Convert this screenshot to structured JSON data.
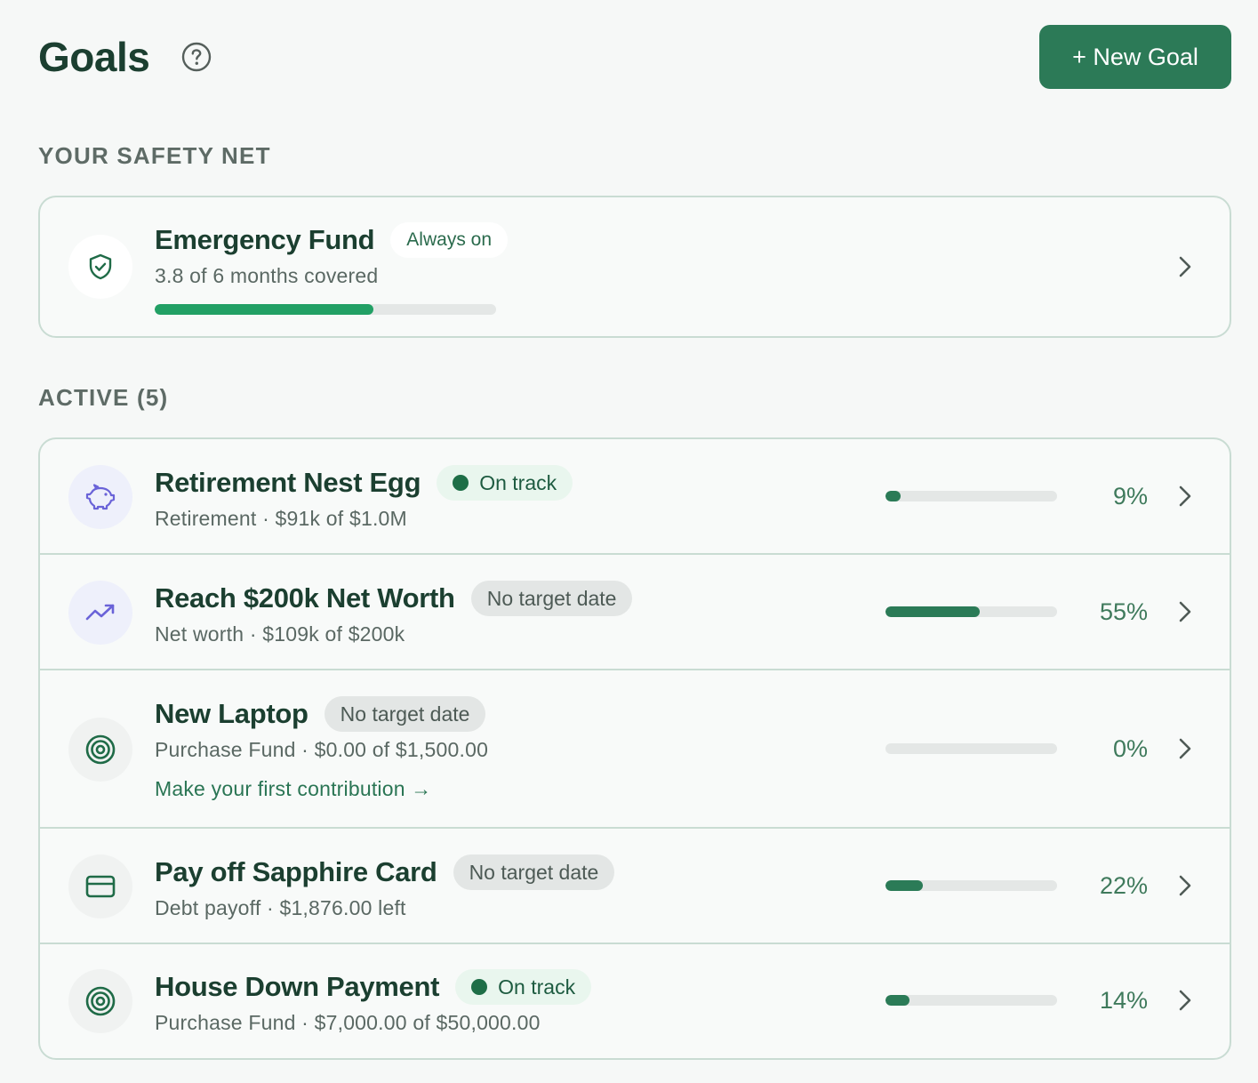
{
  "header": {
    "title": "Goals",
    "help_icon": "help-circle-icon",
    "new_goal_label": "+ New Goal"
  },
  "safety_net": {
    "section_label": "YOUR SAFETY NET",
    "title": "Emergency Fund",
    "badge": "Always on",
    "subtitle": "3.8 of 6 months covered",
    "progress": 0.64,
    "icon": "shield-check-icon"
  },
  "active": {
    "section_label": "ACTIVE (5)",
    "goals": [
      {
        "title": "Retirement Nest Egg",
        "badge": "On track",
        "badge_type": "on-track",
        "subtitle": "Retirement · $91k of $1.0M",
        "progress_pct": 9,
        "percent_label": "9%",
        "icon": "piggy-bank-icon"
      },
      {
        "title": "Reach $200k Net Worth",
        "badge": "No target date",
        "badge_type": "none",
        "subtitle": "Net worth · $109k of $200k",
        "progress_pct": 55,
        "percent_label": "55%",
        "icon": "trending-up-icon"
      },
      {
        "title": "New Laptop",
        "badge": "No target date",
        "badge_type": "none",
        "subtitle": "Purchase Fund · $0.00 of $1,500.00",
        "cta": "Make your first contribution →",
        "progress_pct": 0,
        "percent_label": "0%",
        "icon": "target-icon"
      },
      {
        "title": "Pay off Sapphire Card",
        "badge": "No target date",
        "badge_type": "none",
        "subtitle": "Debt payoff · $1,876.00 left",
        "progress_pct": 22,
        "percent_label": "22%",
        "icon": "credit-card-icon"
      },
      {
        "title": "House Down Payment",
        "badge": "On track",
        "badge_type": "on-track",
        "subtitle": "Purchase Fund · $7,000.00 of $50,000.00",
        "progress_pct": 14,
        "percent_label": "14%",
        "icon": "target-icon"
      }
    ]
  },
  "colors": {
    "accent": "#2c7a57",
    "progress_fill": "#2b7b57",
    "safety_fill": "#22a065",
    "icon_purple": "#6a63d8",
    "icon_green": "#1f6b47"
  }
}
